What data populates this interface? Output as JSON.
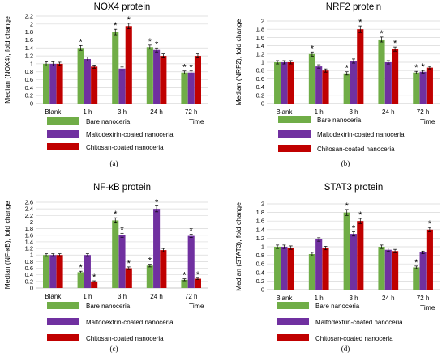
{
  "legend": {
    "items": [
      {
        "label": "Bare nanoceria",
        "color": "#70ad47"
      },
      {
        "label": "Maltodextrin-coated nanoceria",
        "color": "#7030a0"
      },
      {
        "label": "Chitosan-coated nanoceria",
        "color": "#c00000"
      }
    ]
  },
  "chart_data": [
    {
      "type": "bar",
      "title": "NOX4 protein",
      "ylabel": "Median (NOX4), fold change",
      "xlabel": "Time",
      "panel_label": "(a)",
      "categories": [
        "Blank",
        "1 h",
        "3 h",
        "24 h",
        "72 h"
      ],
      "ylim": [
        0,
        2.2
      ],
      "yticks": [
        0,
        0.2,
        0.4,
        0.6,
        0.8,
        1,
        1.2,
        1.4,
        1.6,
        1.8,
        2,
        2.2
      ],
      "grid": true,
      "series": [
        {
          "name": "Bare nanoceria",
          "values": [
            1.0,
            1.4,
            1.8,
            1.42,
            0.78
          ],
          "errors": [
            0.05,
            0.06,
            0.07,
            0.05,
            0.04
          ],
          "significant": [
            false,
            true,
            true,
            true,
            true
          ]
        },
        {
          "name": "Maltodextrin-coated nanoceria",
          "values": [
            1.0,
            1.12,
            0.88,
            1.35,
            0.78
          ],
          "errors": [
            0.05,
            0.05,
            0.04,
            0.05,
            0.04
          ],
          "significant": [
            false,
            false,
            false,
            true,
            true
          ]
        },
        {
          "name": "Chitosan-coated nanoceria",
          "values": [
            1.0,
            0.93,
            1.95,
            1.2,
            1.2
          ],
          "errors": [
            0.04,
            0.04,
            0.07,
            0.05,
            0.05
          ],
          "significant": [
            false,
            false,
            true,
            false,
            false
          ]
        }
      ]
    },
    {
      "type": "bar",
      "title": "NRF2 protein",
      "ylabel": "Median (NRF2), fold change",
      "xlabel": "Time",
      "panel_label": "(b)",
      "categories": [
        "Blank",
        "1 h",
        "3 h",
        "24 h",
        "72 h"
      ],
      "ylim": [
        0,
        2
      ],
      "yticks": [
        0,
        0.2,
        0.4,
        0.6,
        0.8,
        1,
        1.2,
        1.4,
        1.6,
        1.8,
        2
      ],
      "grid": true,
      "series": [
        {
          "name": "Bare nanoceria",
          "values": [
            1.0,
            1.2,
            0.73,
            1.55,
            0.75
          ],
          "errors": [
            0.04,
            0.05,
            0.04,
            0.06,
            0.03
          ],
          "significant": [
            false,
            true,
            true,
            true,
            true
          ]
        },
        {
          "name": "Maltodextrin-coated nanoceria",
          "values": [
            1.0,
            0.9,
            1.03,
            1.0,
            0.77
          ],
          "errors": [
            0.04,
            0.04,
            0.05,
            0.04,
            0.03
          ],
          "significant": [
            false,
            false,
            false,
            false,
            true
          ]
        },
        {
          "name": "Chitosan-coated nanoceria",
          "values": [
            1.0,
            0.8,
            1.8,
            1.32,
            0.87
          ],
          "errors": [
            0.04,
            0.04,
            0.08,
            0.05,
            0.03
          ],
          "significant": [
            false,
            false,
            true,
            true,
            false
          ]
        }
      ]
    },
    {
      "type": "bar",
      "title": "NF-κB protein",
      "ylabel": "Median (NF-κB), fold change",
      "xlabel": "Time",
      "panel_label": "(c)",
      "categories": [
        "Blank",
        "1 h",
        "3 h",
        "24 h",
        "72 h"
      ],
      "ylim": [
        0,
        2.6
      ],
      "yticks": [
        0,
        0.2,
        0.4,
        0.6,
        0.8,
        1,
        1.2,
        1.4,
        1.6,
        1.8,
        2,
        2.2,
        2.4,
        2.6
      ],
      "grid": true,
      "series": [
        {
          "name": "Bare nanoceria",
          "values": [
            1.0,
            0.48,
            2.05,
            0.68,
            0.25
          ],
          "errors": [
            0.04,
            0.03,
            0.08,
            0.04,
            0.03
          ],
          "significant": [
            false,
            true,
            true,
            true,
            true
          ]
        },
        {
          "name": "Maltodextrin-coated nanoceria",
          "values": [
            1.0,
            1.0,
            1.6,
            2.4,
            1.58
          ],
          "errors": [
            0.04,
            0.04,
            0.06,
            0.09,
            0.05
          ],
          "significant": [
            false,
            false,
            true,
            true,
            true
          ]
        },
        {
          "name": "Chitosan-coated nanoceria",
          "values": [
            1.0,
            0.2,
            0.6,
            1.15,
            0.28
          ],
          "errors": [
            0.04,
            0.02,
            0.04,
            0.05,
            0.02
          ],
          "significant": [
            false,
            true,
            true,
            false,
            true
          ]
        }
      ]
    },
    {
      "type": "bar",
      "title": "STAT3 protein",
      "ylabel": "Median (STAT3), fold change",
      "xlabel": "Time",
      "panel_label": "(d)",
      "categories": [
        "Blank",
        "1 h",
        "3 h",
        "24 h",
        "72 h"
      ],
      "ylim": [
        0,
        2
      ],
      "yticks": [
        0,
        0.2,
        0.4,
        0.6,
        0.8,
        1,
        1.2,
        1.4,
        1.6,
        1.8,
        2
      ],
      "grid": true,
      "series": [
        {
          "name": "Bare nanoceria",
          "values": [
            1.0,
            0.83,
            1.8,
            1.0,
            0.52
          ],
          "errors": [
            0.04,
            0.04,
            0.07,
            0.04,
            0.03
          ],
          "significant": [
            false,
            false,
            true,
            false,
            true
          ]
        },
        {
          "name": "Maltodextrin-coated nanoceria",
          "values": [
            1.0,
            1.17,
            1.3,
            0.93,
            0.87
          ],
          "errors": [
            0.04,
            0.04,
            0.05,
            0.04,
            0.03
          ],
          "significant": [
            false,
            false,
            true,
            false,
            false
          ]
        },
        {
          "name": "Chitosan-coated nanoceria",
          "values": [
            0.98,
            0.97,
            1.6,
            0.9,
            1.4
          ],
          "errors": [
            0.04,
            0.04,
            0.06,
            0.04,
            0.05
          ],
          "significant": [
            false,
            false,
            true,
            false,
            true
          ]
        }
      ]
    }
  ]
}
